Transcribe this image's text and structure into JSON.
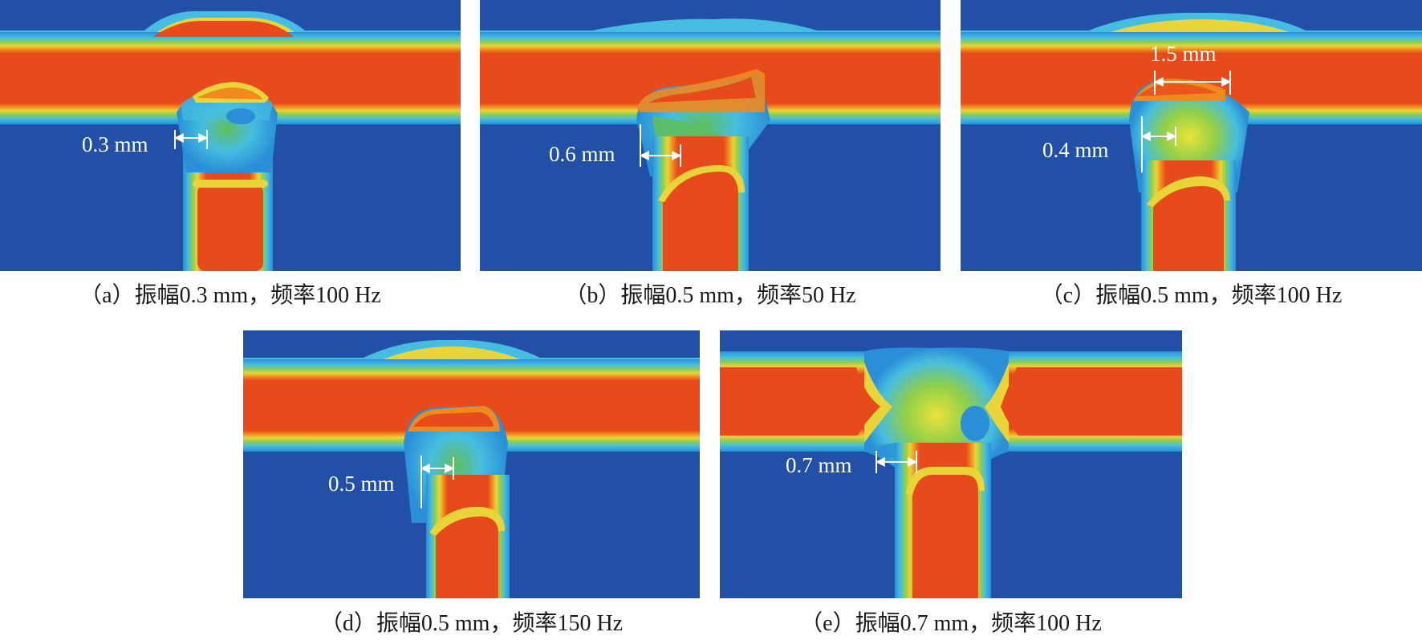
{
  "figure": {
    "panels": [
      {
        "id": "a",
        "measure": "0.3 mm",
        "caption": "（a）振幅0.3 mm，频率100 Hz"
      },
      {
        "id": "b",
        "measure": "0.6 mm",
        "caption": "（b）振幅0.5 mm，频率50 Hz"
      },
      {
        "id": "c",
        "measure": "0.4 mm",
        "measure2": "1.5 mm",
        "caption": "（c）振幅0.5 mm，频率100 Hz"
      },
      {
        "id": "d",
        "measure": "0.5 mm",
        "caption": "（d）振幅0.5 mm，频率150 Hz"
      },
      {
        "id": "e",
        "measure": "0.7 mm",
        "caption": "（e）振幅0.7 mm，频率100 Hz"
      }
    ],
    "colors": {
      "background": "#2150a6",
      "band_outer": "#2a8fd6",
      "band_cyan": "#46bde0",
      "band_green": "#5fbf5a",
      "band_yellow": "#e9d43a",
      "band_orange": "#f08a1e",
      "core": "#e74a1b",
      "marker": "#ffffff"
    }
  }
}
